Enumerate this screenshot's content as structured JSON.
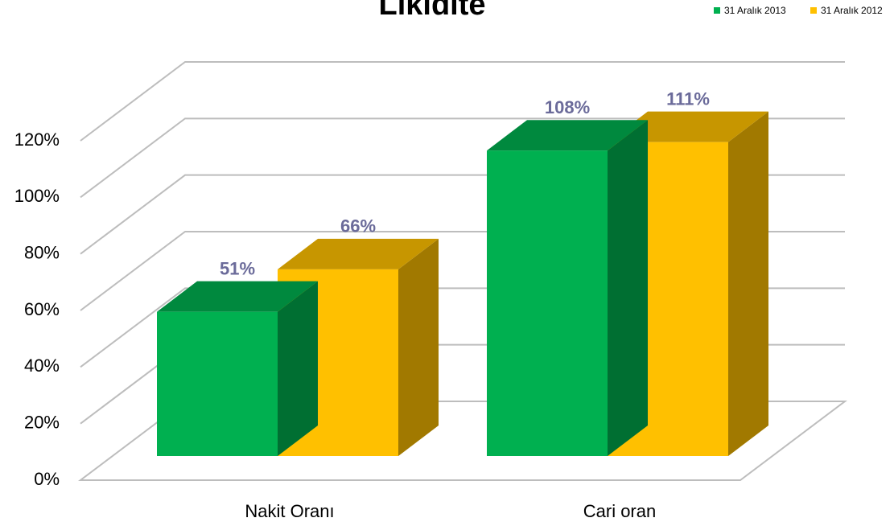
{
  "chart_data": {
    "type": "bar3d",
    "title": "Likidite",
    "categories": [
      "Nakit Oranı",
      "Cari oran"
    ],
    "series": [
      {
        "name": "31 Aralık 2013",
        "color": "#00b050",
        "values": [
          51,
          108
        ],
        "value_labels": [
          "51%",
          "108%"
        ]
      },
      {
        "name": "31 Aralık 2012",
        "color": "#ffc000",
        "values": [
          66,
          111
        ],
        "value_labels": [
          "66%",
          "111%"
        ]
      }
    ],
    "ylim": [
      0,
      120
    ],
    "yticks": [
      {
        "value": 0,
        "label": "0%"
      },
      {
        "value": 20,
        "label": "20%"
      },
      {
        "value": 40,
        "label": "40%"
      },
      {
        "value": 60,
        "label": "60%"
      },
      {
        "value": 80,
        "label": "80%"
      },
      {
        "value": 100,
        "label": "100%"
      },
      {
        "value": 120,
        "label": "120%"
      }
    ],
    "grid": true,
    "legend": "top-right"
  }
}
